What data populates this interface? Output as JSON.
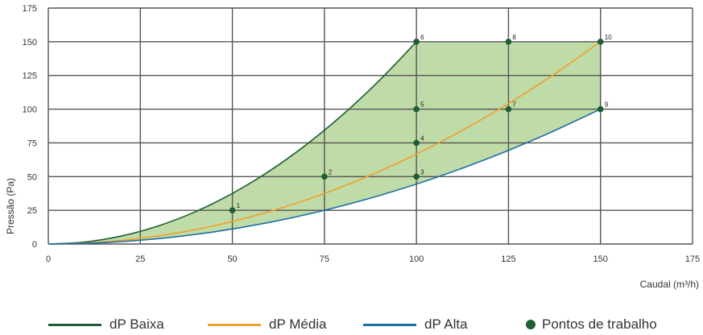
{
  "chart_data": {
    "type": "line",
    "xlabel": "Caudal (m³/h)",
    "ylabel": "Pressão (Pa)",
    "xlim": [
      0,
      175
    ],
    "ylim": [
      0,
      175
    ],
    "xticks": [
      0,
      25,
      50,
      75,
      100,
      125,
      150,
      175
    ],
    "yticks": [
      0,
      25,
      50,
      75,
      100,
      125,
      150,
      175
    ],
    "grid": true,
    "legend_position": "bottom",
    "series": [
      {
        "name": "dP Baixa",
        "color": "#1e5e34",
        "x": [
          0,
          10,
          20,
          30,
          40,
          50,
          60,
          70,
          80,
          90,
          100
        ],
        "y": [
          0,
          1.5,
          6,
          13.5,
          24,
          37.5,
          54,
          73.5,
          96,
          121.5,
          150
        ]
      },
      {
        "name": "dP Média",
        "color": "#f0a030",
        "x": [
          0,
          15,
          30,
          45,
          60,
          75,
          90,
          105,
          120,
          135,
          150
        ],
        "y": [
          0,
          1.5,
          6,
          13.5,
          24,
          37.5,
          54,
          73.5,
          96,
          121.5,
          150
        ]
      },
      {
        "name": "dP Alta",
        "color": "#1f6fa5",
        "x": [
          0,
          15,
          30,
          45,
          60,
          75,
          90,
          105,
          120,
          135,
          150
        ],
        "y": [
          0,
          1,
          4,
          9,
          16,
          25,
          36,
          49,
          64,
          81,
          100
        ]
      }
    ],
    "working_points": {
      "name": "Pontos de trabalho",
      "color": "#1e5e34",
      "points": [
        {
          "label": "1",
          "x": 50,
          "y": 25
        },
        {
          "label": "2",
          "x": 75,
          "y": 50
        },
        {
          "label": "3",
          "x": 100,
          "y": 50
        },
        {
          "label": "4",
          "x": 100,
          "y": 75
        },
        {
          "label": "5",
          "x": 100,
          "y": 100
        },
        {
          "label": "6",
          "x": 100,
          "y": 150
        },
        {
          "label": "7",
          "x": 125,
          "y": 100
        },
        {
          "label": "8",
          "x": 125,
          "y": 150
        },
        {
          "label": "9",
          "x": 150,
          "y": 100
        },
        {
          "label": "10",
          "x": 150,
          "y": 150
        }
      ]
    },
    "working_area_color": "#a9cf8a"
  }
}
